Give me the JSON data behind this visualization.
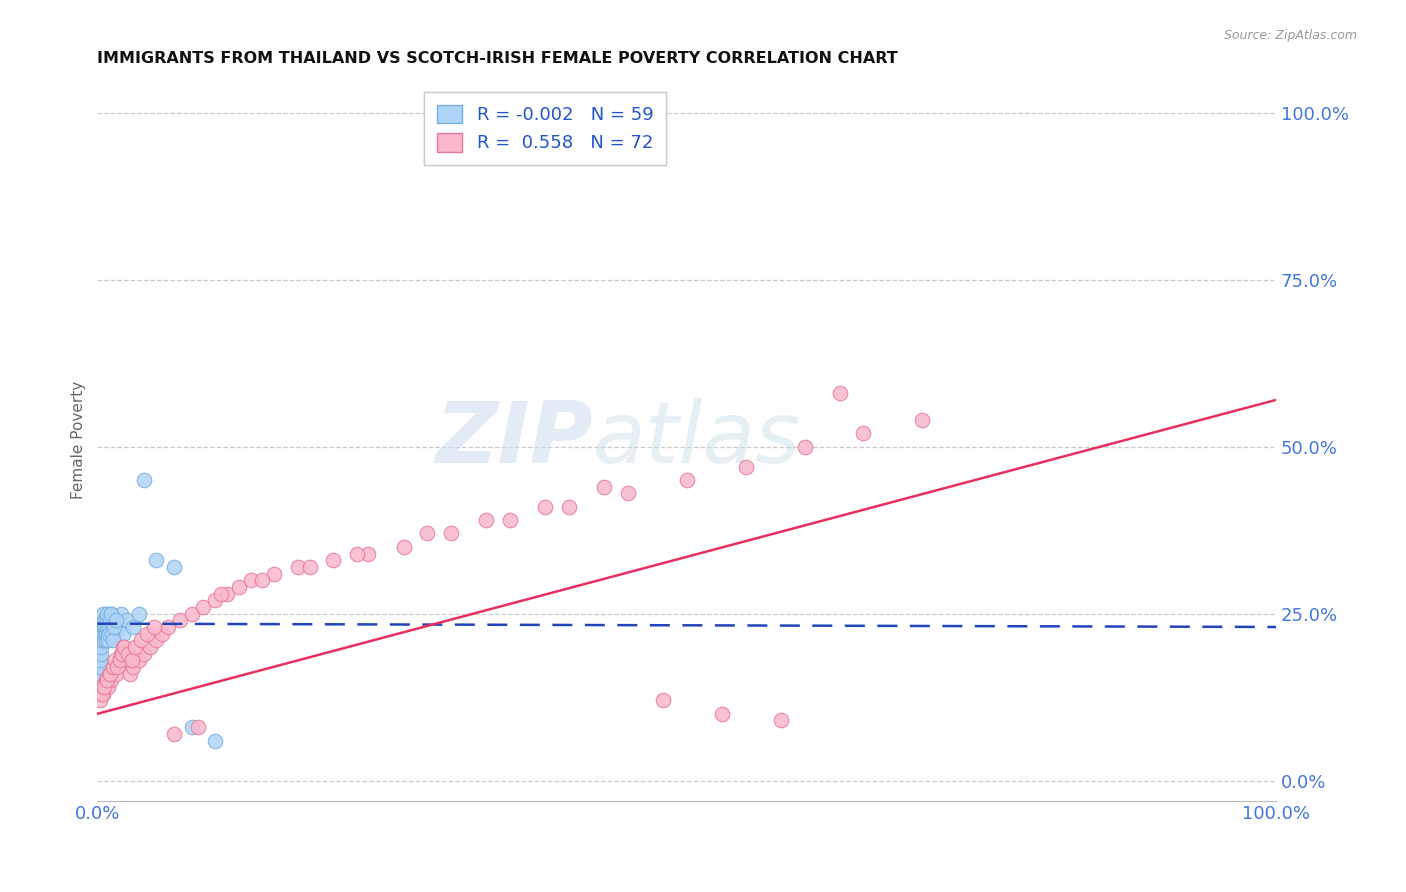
{
  "title": "IMMIGRANTS FROM THAILAND VS SCOTCH-IRISH FEMALE POVERTY CORRELATION CHART",
  "source": "Source: ZipAtlas.com",
  "ylabel": "Female Poverty",
  "series1_label": "Immigrants from Thailand",
  "series2_label": "Scotch-Irish",
  "series1_color": "#aed4f7",
  "series2_color": "#f9b8cb",
  "series1_edge": "#7aaede",
  "series2_edge": "#e87898",
  "line1_color": "#2244bb",
  "line2_color": "#e83060",
  "R1": -0.002,
  "N1": 59,
  "R2": 0.558,
  "N2": 72,
  "legend_color": "#2255cc",
  "watermark_zip": "ZIP",
  "watermark_atlas": "atlas",
  "background_color": "#ffffff",
  "grid_color": "#cccccc",
  "title_fontsize": 11.5,
  "right_ytick_color": "#4477dd",
  "xtick_color": "#4477dd",
  "series1_x": [
    0.2,
    0.3,
    0.4,
    0.5,
    0.6,
    0.7,
    0.8,
    0.9,
    1.0,
    1.1,
    1.2,
    1.3,
    1.4,
    1.5,
    1.6,
    1.8,
    2.0,
    2.2,
    2.5,
    3.0,
    3.5,
    4.0,
    5.0,
    6.5,
    8.0,
    10.0,
    0.1,
    0.15,
    0.18,
    0.22,
    0.25,
    0.28,
    0.32,
    0.35,
    0.38,
    0.42,
    0.45,
    0.48,
    0.52,
    0.55,
    0.58,
    0.62,
    0.65,
    0.68,
    0.72,
    0.75,
    0.78,
    0.82,
    0.85,
    0.88,
    0.92,
    0.95,
    0.98,
    1.05,
    1.15,
    1.25,
    1.35,
    1.45,
    1.55
  ],
  "series1_y": [
    23.0,
    24.0,
    22.0,
    21.0,
    23.0,
    24.0,
    25.0,
    22.0,
    24.0,
    23.0,
    25.0,
    24.0,
    23.0,
    22.0,
    24.0,
    23.0,
    25.0,
    22.0,
    24.0,
    23.0,
    25.0,
    45.0,
    33.0,
    32.0,
    8.0,
    6.0,
    14.0,
    15.0,
    16.0,
    17.0,
    18.0,
    19.0,
    20.0,
    21.0,
    22.0,
    23.0,
    24.0,
    25.0,
    22.0,
    21.0,
    23.0,
    24.0,
    22.0,
    23.0,
    21.0,
    22.0,
    23.0,
    24.0,
    25.0,
    22.0,
    21.0,
    23.0,
    22.0,
    24.0,
    25.0,
    22.0,
    21.0,
    23.0,
    24.0
  ],
  "series2_x": [
    0.3,
    0.5,
    0.7,
    0.9,
    1.0,
    1.2,
    1.4,
    1.6,
    1.8,
    2.0,
    2.2,
    2.5,
    2.8,
    3.0,
    3.5,
    4.0,
    4.5,
    5.0,
    5.5,
    6.0,
    7.0,
    8.0,
    9.0,
    10.0,
    11.0,
    12.0,
    13.0,
    15.0,
    17.0,
    20.0,
    23.0,
    26.0,
    30.0,
    35.0,
    40.0,
    45.0,
    50.0,
    55.0,
    60.0,
    65.0,
    70.0,
    0.2,
    0.4,
    0.6,
    0.8,
    1.1,
    1.3,
    1.5,
    1.7,
    1.9,
    2.1,
    2.3,
    2.6,
    2.9,
    3.2,
    3.7,
    4.2,
    4.8,
    6.5,
    8.5,
    10.5,
    14.0,
    18.0,
    22.0,
    28.0,
    33.0,
    38.0,
    43.0,
    48.0,
    53.0,
    58.0,
    63.0
  ],
  "series2_y": [
    14.0,
    13.0,
    15.0,
    14.0,
    16.0,
    15.0,
    17.0,
    16.0,
    18.0,
    19.0,
    20.0,
    18.0,
    16.0,
    17.0,
    18.0,
    19.0,
    20.0,
    21.0,
    22.0,
    23.0,
    24.0,
    25.0,
    26.0,
    27.0,
    28.0,
    29.0,
    30.0,
    31.0,
    32.0,
    33.0,
    34.0,
    35.0,
    37.0,
    39.0,
    41.0,
    43.0,
    45.0,
    47.0,
    50.0,
    52.0,
    54.0,
    12.0,
    13.0,
    14.0,
    15.0,
    16.0,
    17.0,
    18.0,
    17.0,
    18.0,
    19.0,
    20.0,
    19.0,
    18.0,
    20.0,
    21.0,
    22.0,
    23.0,
    7.0,
    8.0,
    28.0,
    30.0,
    32.0,
    34.0,
    37.0,
    39.0,
    41.0,
    44.0,
    12.0,
    10.0,
    9.0,
    58.0
  ],
  "line1_x": [
    0.0,
    100.0
  ],
  "line1_y_start": 23.5,
  "line1_y_end": 23.0,
  "line2_x": [
    0.0,
    100.0
  ],
  "line2_y_start": 10.0,
  "line2_y_end": 57.0,
  "ylim_min": -3.0,
  "ylim_max": 105.0,
  "xlim_min": 0.0,
  "xlim_max": 100.0,
  "right_yticks": [
    0.0,
    25.0,
    50.0,
    75.0,
    100.0
  ],
  "right_yticklabels": [
    "0.0%",
    "25.0%",
    "50.0%",
    "75.0%",
    "100.0%"
  ]
}
